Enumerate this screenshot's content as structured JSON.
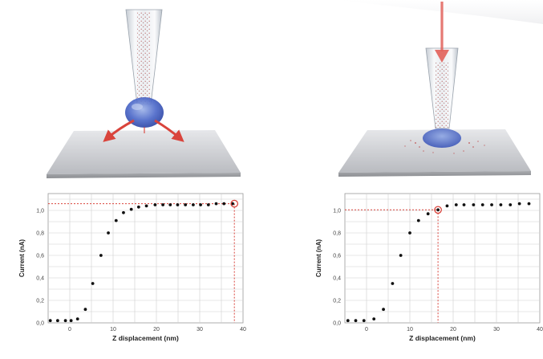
{
  "chart_data": [
    {
      "type": "scatter",
      "panel": "left",
      "xlabel": "Z displacement (nm)",
      "ylabel": "Current (nA)",
      "xlim": [
        -5,
        40
      ],
      "ylim": [
        0,
        1.15
      ],
      "x_ticks": [
        0,
        10,
        20,
        30,
        40
      ],
      "y_ticks": [
        0.0,
        0.2,
        0.4,
        0.6,
        0.8,
        1.0
      ],
      "y_tick_labels": [
        "0,0",
        "0,2",
        "0,4",
        "0,6",
        "0,8",
        "1,0"
      ],
      "grid": true,
      "x": [
        -4.5,
        -2.8,
        -1.0,
        0.3,
        1.8,
        3.6,
        5.3,
        7.2,
        8.9,
        10.7,
        12.4,
        14.2,
        15.9,
        17.7,
        19.7,
        21.5,
        23.2,
        24.9,
        26.7,
        28.5,
        30.2,
        32.0,
        33.8,
        35.6,
        37.6
      ],
      "y": [
        0.02,
        0.02,
        0.02,
        0.02,
        0.035,
        0.12,
        0.35,
        0.6,
        0.8,
        0.91,
        0.98,
        1.01,
        1.03,
        1.04,
        1.05,
        1.05,
        1.05,
        1.05,
        1.05,
        1.05,
        1.05,
        1.05,
        1.06,
        1.06,
        1.06
      ],
      "highlight": {
        "x": 38.0,
        "y": 1.06
      }
    },
    {
      "type": "scatter",
      "panel": "right",
      "xlabel": "Z displacement (nm)",
      "ylabel": "Current (nA)",
      "xlim": [
        -5,
        40
      ],
      "ylim": [
        0,
        1.15
      ],
      "x_ticks": [
        0,
        10,
        20,
        30,
        40
      ],
      "y_ticks": [
        0.0,
        0.2,
        0.4,
        0.6,
        0.8,
        1.0
      ],
      "y_tick_labels": [
        "0,0",
        "0,2",
        "0,4",
        "0,6",
        "0,8",
        "1,0"
      ],
      "grid": true,
      "x": [
        -4.3,
        -2.5,
        -0.6,
        1.7,
        3.9,
        6.0,
        7.9,
        10.0,
        12.0,
        14.2,
        16.5,
        18.6,
        20.7,
        22.5,
        24.7,
        26.8,
        28.9,
        31.0,
        33.2,
        35.3,
        37.5
      ],
      "y": [
        0.02,
        0.02,
        0.02,
        0.035,
        0.12,
        0.35,
        0.6,
        0.8,
        0.91,
        0.97,
        1.005,
        1.04,
        1.05,
        1.05,
        1.05,
        1.05,
        1.05,
        1.05,
        1.05,
        1.06,
        1.06
      ],
      "highlight": {
        "x": 16.5,
        "y": 1.005
      }
    }
  ]
}
